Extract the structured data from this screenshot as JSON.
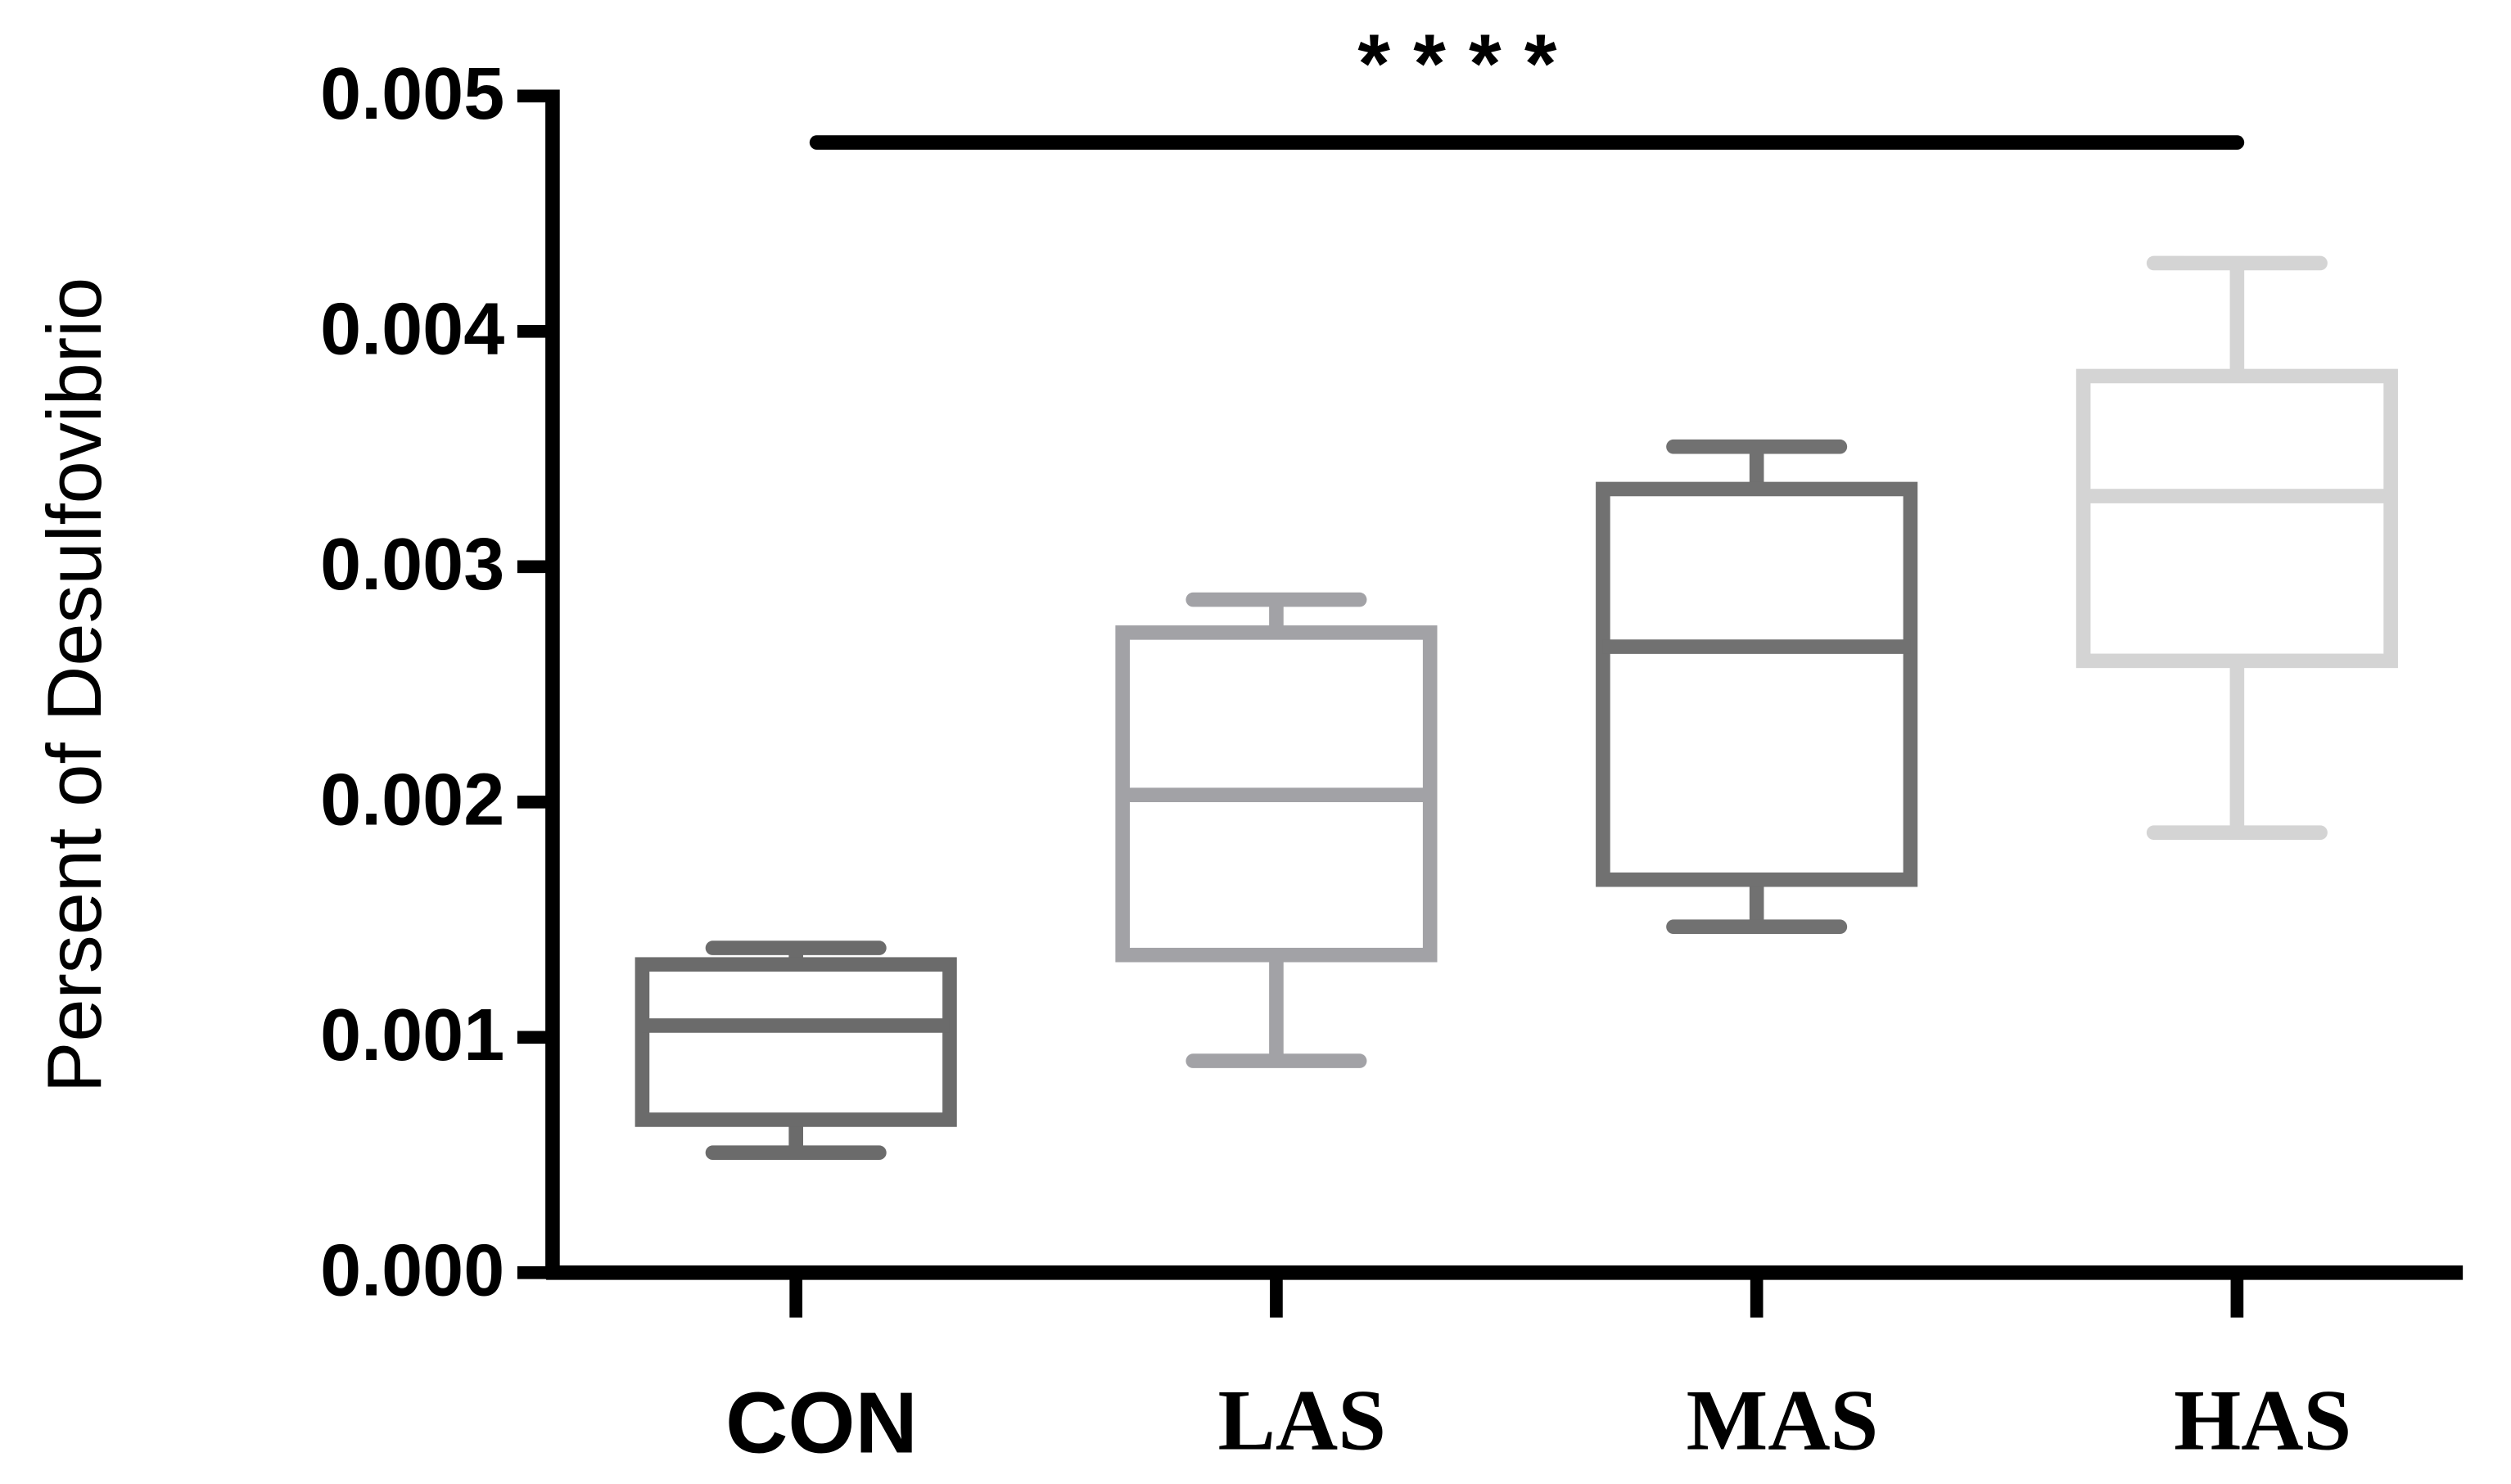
{
  "chart_data": {
    "type": "box",
    "y_label": "Persent of Desulfovibrio",
    "annotation": "* * * *",
    "categories": [
      "CON",
      "LAS",
      "MAS",
      "HAS"
    ],
    "boxes": [
      {
        "min": 0.00051,
        "q1": 0.00065,
        "median": 0.00105,
        "q3": 0.00131,
        "max": 0.00138,
        "color": "#6b6b6b"
      },
      {
        "min": 0.0009,
        "q1": 0.00135,
        "median": 0.00203,
        "q3": 0.00272,
        "max": 0.00286,
        "color": "#a2a2a6"
      },
      {
        "min": 0.00147,
        "q1": 0.00167,
        "median": 0.00266,
        "q3": 0.00333,
        "max": 0.00351,
        "color": "#717171"
      },
      {
        "min": 0.00187,
        "q1": 0.0026,
        "median": 0.0033,
        "q3": 0.00381,
        "max": 0.00429,
        "color": "#d4d4d4"
      }
    ],
    "ylim": [
      0,
      0.005
    ],
    "yticks": [
      {
        "value": 0,
        "label": "0.000"
      },
      0.001,
      0.002,
      0.003,
      0.004,
      0.005
    ]
  }
}
